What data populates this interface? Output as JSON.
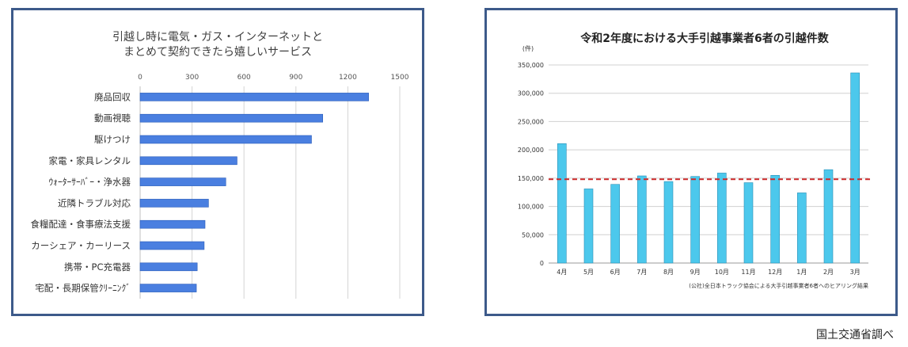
{
  "left_chart": {
    "title_line1": "引越し時に電気・ガス・インターネットと",
    "title_line2": "まとめて契約できたら嬉しいサービス"
  },
  "right_chart": {
    "title": "令和2年度における大手引越事業者6者の引越件数",
    "yunit": "(件)",
    "footnote": "(公社)全日本トラック協会による大手引越事業者6者へのヒアリング結果"
  },
  "source_note": "国土交通省調べ",
  "colors": {
    "bar_left": "#4a7fe0",
    "bar_right": "#4cc8ec",
    "avg_line": "#cc2a2a",
    "frame": "#3d5a8a"
  },
  "chart_data": [
    {
      "type": "bar",
      "orientation": "horizontal",
      "title": "引越し時に電気・ガス・インターネットと まとめて契約できたら嬉しいサービス",
      "categories": [
        "廃品回収",
        "動画視聴",
        "駆けつけ",
        "家電・家具レンタル",
        "ｳｫｰﾀｰｻｰﾊﾞｰ・浄水器",
        "近隣トラブル対応",
        "食糧配達・食事療法支援",
        "カーシェア・カーリース",
        "携帯・PC充電器",
        "宅配・長期保管ｸﾘｰﾆﾝｸﾞ"
      ],
      "values": [
        1320,
        1055,
        990,
        560,
        495,
        395,
        375,
        370,
        330,
        325
      ],
      "xlim": [
        0,
        1500
      ],
      "xticks": [
        0,
        300,
        600,
        900,
        1200,
        1500
      ],
      "grid": true
    },
    {
      "type": "bar",
      "title": "令和2年度における大手引越事業者6者の引越件数",
      "categories": [
        "4月",
        "5月",
        "6月",
        "7月",
        "8月",
        "9月",
        "10月",
        "11月",
        "12月",
        "1月",
        "2月",
        "3月"
      ],
      "values": [
        211000,
        131000,
        139000,
        154000,
        144000,
        153000,
        159000,
        142000,
        155000,
        124000,
        165000,
        336000
      ],
      "ylim": [
        0,
        350000
      ],
      "yticks": [
        "0",
        "50,000",
        "100,000",
        "150,000",
        "200,000",
        "250,000",
        "300,000",
        "350,000"
      ],
      "ytick_values": [
        0,
        50000,
        100000,
        150000,
        200000,
        250000,
        300000,
        350000
      ],
      "reference_line": 148000,
      "grid": true
    }
  ]
}
